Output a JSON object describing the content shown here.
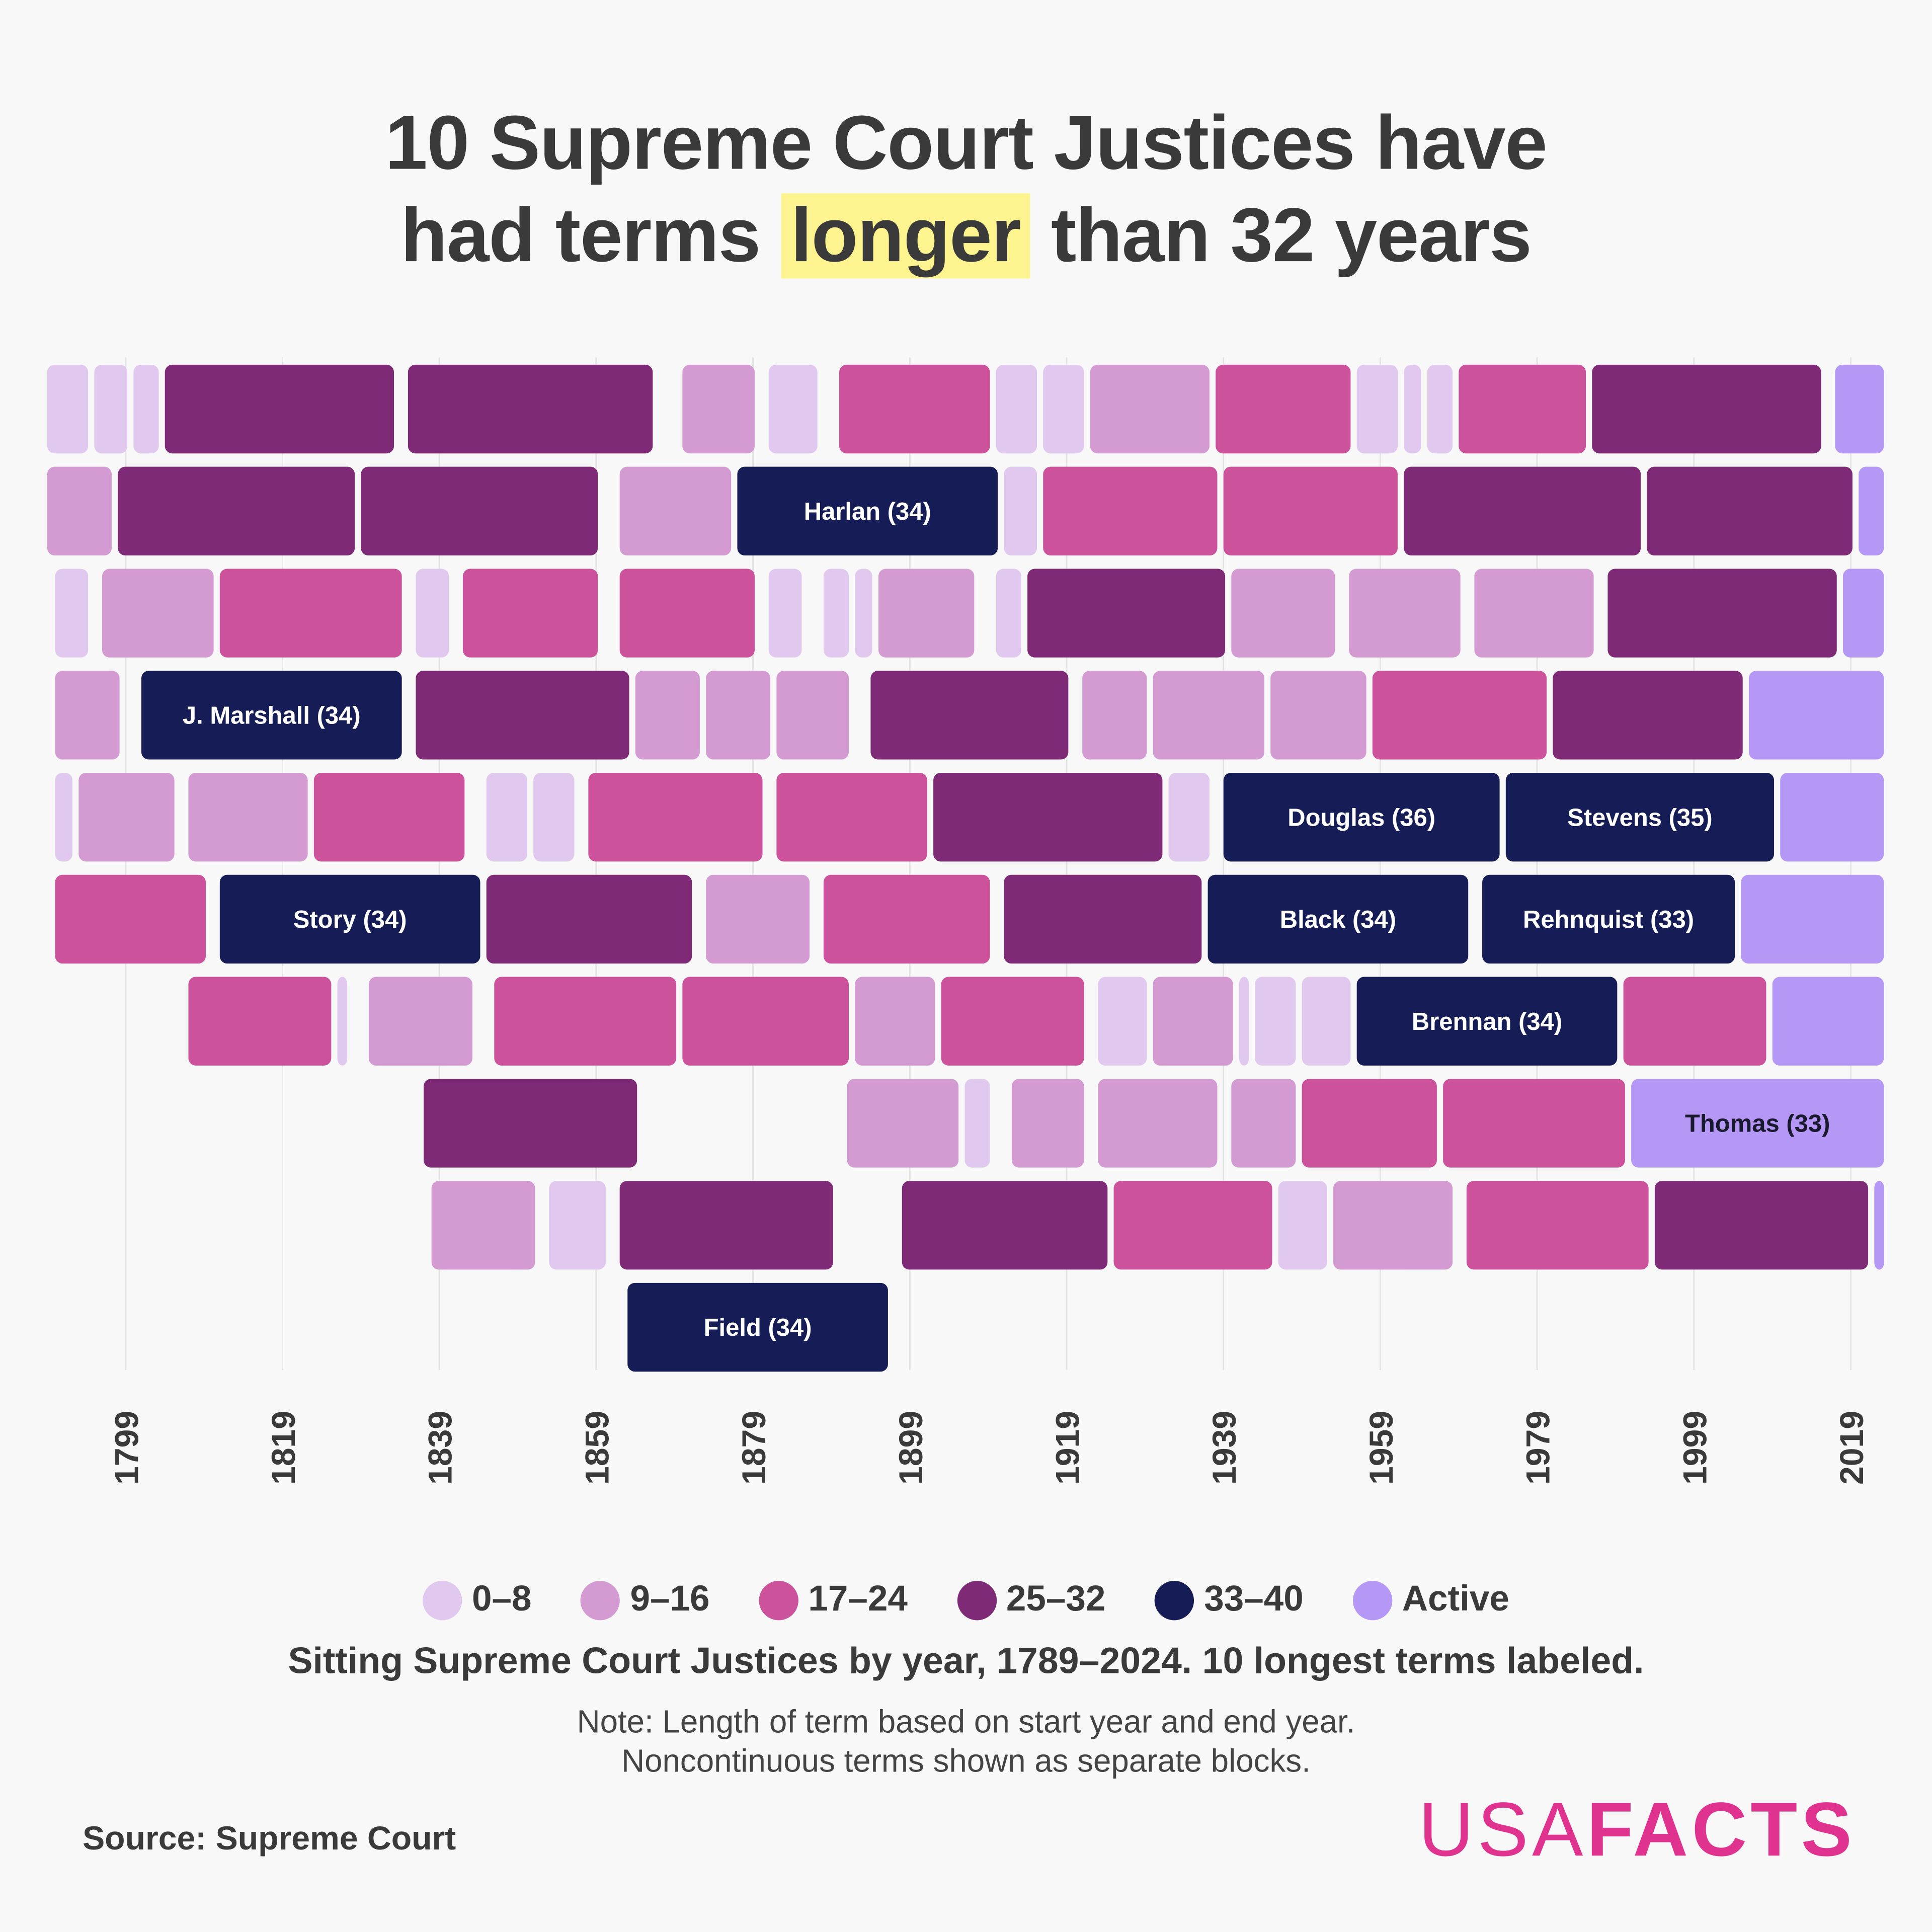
{
  "title": {
    "line1": "10 Supreme Court Justices have",
    "line2_pre": "had terms",
    "line2_highlight": "longer",
    "line2_post": "than 32 years",
    "highlight_color": "#fdf38f"
  },
  "chart_data": {
    "type": "timeline",
    "x_ticks": [
      1799,
      1819,
      1839,
      1859,
      1879,
      1899,
      1919,
      1939,
      1959,
      1979,
      1999,
      2019
    ],
    "xlim": [
      1789,
      2024
    ],
    "grid": "vertical",
    "colors": {
      "0-8": "#e0c8ef",
      "9-16": "#d49ad2",
      "17-24": "#cd529c",
      "25-32": "#7f2a76",
      "33-40": "#161c56",
      "Active": "#b597f5"
    },
    "rows": [
      [
        [
          1789,
          1795,
          "0-8"
        ],
        [
          1795,
          1800,
          "0-8"
        ],
        [
          1800,
          1804,
          "0-8"
        ],
        [
          1804,
          1834,
          "25-32"
        ],
        [
          1835,
          1867,
          "25-32"
        ],
        [
          1870,
          1880,
          "9-16"
        ],
        [
          1881,
          1888,
          "0-8"
        ],
        [
          1890,
          1910,
          "17-24"
        ],
        [
          1910,
          1916,
          "0-8"
        ],
        [
          1916,
          1922,
          "0-8"
        ],
        [
          1922,
          1938,
          "9-16"
        ],
        [
          1938,
          1956,
          "17-24"
        ],
        [
          1956,
          1962,
          "0-8"
        ],
        [
          1962,
          1965,
          "0-8"
        ],
        [
          1965,
          1969,
          "0-8"
        ],
        [
          1969,
          1986,
          "17-24"
        ],
        [
          1986,
          2016,
          "25-32"
        ],
        [
          2017,
          2024,
          "Active"
        ]
      ],
      [
        [
          1789,
          1798,
          "9-16"
        ],
        [
          1798,
          1829,
          "25-32"
        ],
        [
          1829,
          1860,
          "25-32"
        ],
        [
          1862,
          1877,
          "9-16"
        ],
        [
          1877,
          1911,
          "33-40",
          "Harlan (34)"
        ],
        [
          1911,
          1916,
          "0-8"
        ],
        [
          1916,
          1939,
          "17-24"
        ],
        [
          1939,
          1962,
          "17-24"
        ],
        [
          1962,
          1993,
          "25-32"
        ],
        [
          1993,
          2020,
          "25-32"
        ],
        [
          2020,
          2024,
          "Active"
        ]
      ],
      [
        [
          1790,
          1795,
          "0-8"
        ],
        [
          1796,
          1811,
          "9-16"
        ],
        [
          1811,
          1835,
          "17-24"
        ],
        [
          1836,
          1841,
          "0-8"
        ],
        [
          1842,
          1860,
          "17-24"
        ],
        [
          1862,
          1880,
          "17-24"
        ],
        [
          1881,
          1886,
          "0-8"
        ],
        [
          1888,
          1892,
          "0-8"
        ],
        [
          1892,
          1895,
          "0-8"
        ],
        [
          1895,
          1908,
          "9-16"
        ],
        [
          1910,
          1914,
          "0-8"
        ],
        [
          1914,
          1940,
          "25-32"
        ],
        [
          1940,
          1954,
          "9-16"
        ],
        [
          1955,
          1970,
          "9-16"
        ],
        [
          1971,
          1987,
          "9-16"
        ],
        [
          1988,
          2018,
          "25-32"
        ],
        [
          2018,
          2024,
          "Active"
        ]
      ],
      [
        [
          1790,
          1799,
          "9-16"
        ],
        [
          1801,
          1835,
          "33-40",
          "J. Marshall (34)"
        ],
        [
          1836,
          1864,
          "25-32"
        ],
        [
          1864,
          1873,
          "9-16"
        ],
        [
          1873,
          1882,
          "9-16"
        ],
        [
          1882,
          1892,
          "9-16"
        ],
        [
          1894,
          1920,
          "25-32"
        ],
        [
          1921,
          1930,
          "9-16"
        ],
        [
          1930,
          1945,
          "9-16"
        ],
        [
          1945,
          1958,
          "9-16"
        ],
        [
          1958,
          1981,
          "17-24"
        ],
        [
          1981,
          2006,
          "25-32"
        ],
        [
          2006,
          2024,
          "Active"
        ]
      ],
      [
        [
          1790,
          1793,
          "0-8"
        ],
        [
          1793,
          1806,
          "9-16"
        ],
        [
          1807,
          1823,
          "9-16"
        ],
        [
          1823,
          1843,
          "17-24"
        ],
        [
          1845,
          1851,
          "0-8"
        ],
        [
          1851,
          1857,
          "0-8"
        ],
        [
          1858,
          1881,
          "17-24"
        ],
        [
          1882,
          1902,
          "17-24"
        ],
        [
          1902,
          1932,
          "25-32"
        ],
        [
          1932,
          1938,
          "0-8"
        ],
        [
          1939,
          1975,
          "33-40",
          "Douglas (36)"
        ],
        [
          1975,
          2010,
          "33-40",
          "Stevens (35)"
        ],
        [
          2010,
          2024,
          "Active"
        ]
      ],
      [
        [
          1790,
          1810,
          "17-24"
        ],
        [
          1811,
          1845,
          "33-40",
          "Story (34)"
        ],
        [
          1845,
          1872,
          "25-32"
        ],
        [
          1873,
          1887,
          "9-16"
        ],
        [
          1888,
          1910,
          "17-24"
        ],
        [
          1911,
          1937,
          "25-32"
        ],
        [
          1937,
          1971,
          "33-40",
          "Black (34)"
        ],
        [
          1972,
          2005,
          "33-40",
          "Rehnquist (33)"
        ],
        [
          2005,
          2024,
          "Active"
        ]
      ],
      [
        [
          1807,
          1826,
          "17-24"
        ],
        [
          1826,
          1828,
          "0-8"
        ],
        [
          1830,
          1844,
          "9-16"
        ],
        [
          1846,
          1870,
          "17-24"
        ],
        [
          1870,
          1892,
          "17-24"
        ],
        [
          1892,
          1903,
          "9-16"
        ],
        [
          1903,
          1922,
          "17-24"
        ],
        [
          1923,
          1930,
          "0-8"
        ],
        [
          1930,
          1941,
          "9-16"
        ],
        [
          1941,
          1943,
          "0-8"
        ],
        [
          1943,
          1949,
          "0-8"
        ],
        [
          1949,
          1956,
          "0-8"
        ],
        [
          1956,
          1990,
          "33-40",
          "Brennan (34)"
        ],
        [
          1990,
          2009,
          "17-24"
        ],
        [
          2009,
          2024,
          "Active"
        ]
      ],
      [
        [
          1837,
          1865,
          "25-32"
        ],
        [
          1891,
          1906,
          "9-16"
        ],
        [
          1906,
          1910,
          "0-8"
        ],
        [
          1912,
          1922,
          "9-16"
        ],
        [
          1923,
          1939,
          "9-16"
        ],
        [
          1940,
          1949,
          "9-16"
        ],
        [
          1949,
          1967,
          "17-24"
        ],
        [
          1967,
          1991,
          "17-24"
        ],
        [
          1991,
          2024,
          "Active",
          "Thomas (33)"
        ]
      ],
      [
        [
          1838,
          1852,
          "9-16"
        ],
        [
          1853,
          1861,
          "0-8"
        ],
        [
          1862,
          1890,
          "25-32"
        ],
        [
          1898,
          1925,
          "25-32"
        ],
        [
          1925,
          1946,
          "17-24"
        ],
        [
          1946,
          1953,
          "0-8"
        ],
        [
          1953,
          1969,
          "9-16"
        ],
        [
          1970,
          1994,
          "17-24"
        ],
        [
          1994,
          2022,
          "25-32"
        ],
        [
          2022,
          2024,
          "Active"
        ]
      ],
      [
        [
          1863,
          1897,
          "33-40",
          "Field (34)"
        ]
      ]
    ]
  },
  "legend": [
    {
      "label": "0–8",
      "color": "#e0c8ef"
    },
    {
      "label": "9–16",
      "color": "#d49ad2"
    },
    {
      "label": "17–24",
      "color": "#cd529c"
    },
    {
      "label": "25–32",
      "color": "#7f2a76"
    },
    {
      "label": "33–40",
      "color": "#161c56"
    },
    {
      "label": "Active",
      "color": "#b597f5"
    }
  ],
  "subtitle": "Sitting Supreme Court Justices by year, 1789–2024. 10 longest terms labeled.",
  "note": {
    "line1": "Note: Length of term based on start year and end year.",
    "line2": "Noncontinuous terms shown as separate blocks."
  },
  "source": "Source: Supreme Court",
  "logo": {
    "part1": "USA",
    "part2": "FACTS",
    "color": "#e0338f"
  }
}
